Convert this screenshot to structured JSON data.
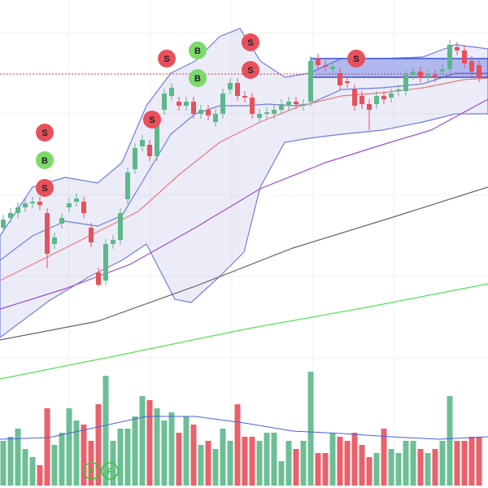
{
  "chart_data": {
    "type": "candlestick",
    "up_color": "#5cb88a",
    "down_color": "#e8505b",
    "ylim": [
      0,
      600
    ],
    "y2lim": [
      0,
      600
    ],
    "open": [
      320,
      332,
      338,
      345,
      350,
      352,
      338,
      300,
      325,
      345,
      352,
      352,
      320,
      265,
      255,
      300,
      305,
      355,
      392,
      420,
      422,
      408,
      465,
      482,
      475,
      470,
      475,
      460,
      465,
      450,
      460,
      490,
      498,
      482,
      480,
      455,
      460,
      460,
      465,
      470,
      475,
      470,
      475,
      528,
      520,
      515,
      510,
      500,
      490,
      482,
      472,
      472,
      482,
      480,
      488,
      488,
      508,
      512,
      505,
      508,
      512,
      515,
      542,
      538,
      525,
      520
    ],
    "high": [
      336,
      344,
      351,
      356,
      358,
      358,
      344,
      314,
      338,
      356,
      362,
      358,
      326,
      271,
      306,
      311,
      344,
      394,
      424,
      434,
      428,
      454,
      491,
      498,
      481,
      481,
      481,
      471,
      471,
      466,
      491,
      504,
      504,
      488,
      486,
      466,
      468,
      471,
      478,
      481,
      481,
      478,
      531,
      534,
      526,
      524,
      516,
      506,
      496,
      488,
      478,
      488,
      488,
      491,
      496,
      514,
      518,
      518,
      514,
      514,
      521,
      551,
      548,
      544,
      531,
      526
    ],
    "low": [
      314,
      326,
      332,
      339,
      344,
      342,
      270,
      294,
      319,
      339,
      346,
      332,
      296,
      248,
      249,
      294,
      299,
      349,
      386,
      414,
      402,
      402,
      459,
      476,
      464,
      464,
      454,
      454,
      452,
      444,
      454,
      484,
      476,
      474,
      454,
      449,
      454,
      454,
      459,
      464,
      466,
      464,
      469,
      514,
      512,
      509,
      489,
      492,
      464,
      466,
      440,
      466,
      472,
      474,
      482,
      482,
      502,
      499,
      499,
      499,
      506,
      509,
      532,
      516,
      506,
      499
    ],
    "close": [
      330,
      338,
      345,
      350,
      352,
      348,
      288,
      308,
      332,
      350,
      356,
      338,
      302,
      250,
      300,
      305,
      338,
      388,
      418,
      428,
      408,
      448,
      485,
      492,
      470,
      475,
      460,
      465,
      458,
      460,
      485,
      498,
      482,
      480,
      460,
      460,
      462,
      465,
      472,
      475,
      472,
      472,
      525,
      520,
      518,
      518,
      495,
      498,
      470,
      472,
      465,
      482,
      478,
      485,
      490,
      508,
      512,
      505,
      508,
      505,
      515,
      545,
      538,
      522,
      512,
      505
    ],
    "volume": [
      55,
      60,
      70,
      45,
      35,
      25,
      95,
      50,
      65,
      95,
      80,
      75,
      55,
      100,
      135,
      55,
      70,
      70,
      85,
      110,
      105,
      95,
      80,
      90,
      65,
      85,
      75,
      50,
      55,
      45,
      70,
      55,
      100,
      60,
      60,
      55,
      65,
      65,
      30,
      55,
      45,
      55,
      140,
      40,
      40,
      65,
      60,
      55,
      65,
      50,
      35,
      40,
      70,
      45,
      40,
      55,
      55,
      45,
      40,
      45,
      55,
      110,
      55,
      55,
      60,
      60
    ],
    "signals": [
      "S",
      "B",
      "S",
      "S",
      "B",
      "B",
      "S",
      "S",
      "S",
      "S"
    ],
    "footer_marks": [
      "F",
      "F"
    ]
  }
}
